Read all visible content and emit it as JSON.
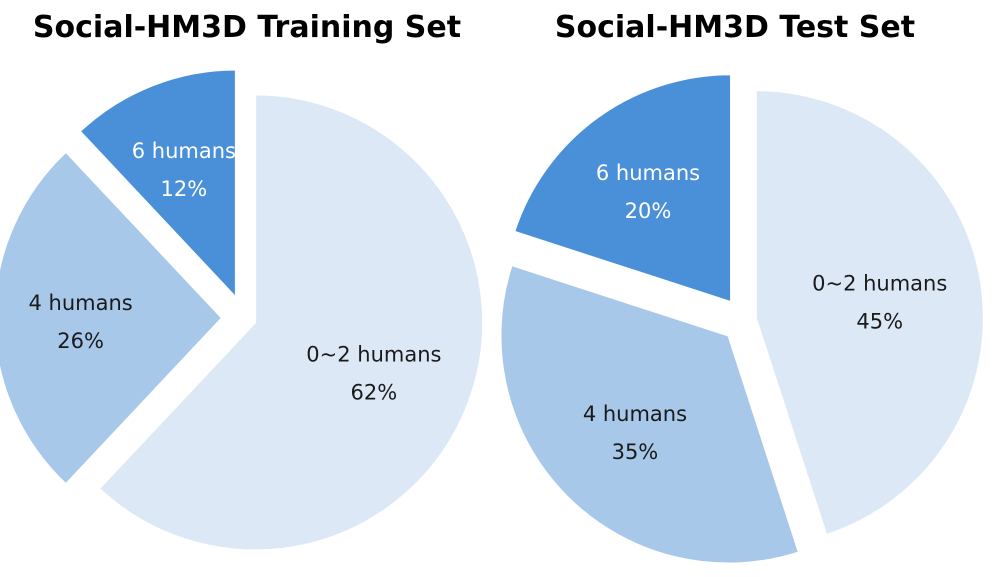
{
  "chart_data": [
    {
      "type": "pie",
      "title": "Social-HM3D Training Set",
      "slices": [
        {
          "label": "0~2 humans",
          "percent_label": "62%",
          "value": 62,
          "color": "#DCE8F6",
          "text_color": "#1a1a1a"
        },
        {
          "label": "4 humans",
          "percent_label": "26%",
          "value": 26,
          "color": "#A8C8EA",
          "text_color": "#1a1a1a"
        },
        {
          "label": "6 humans",
          "percent_label": "12%",
          "value": 12,
          "color": "#4A90D9",
          "text_color": "#ffffff"
        }
      ],
      "legend": "none"
    },
    {
      "type": "pie",
      "title": "Social-HM3D Test Set",
      "slices": [
        {
          "label": "0~2 humans",
          "percent_label": "45%",
          "value": 45,
          "color": "#DCE8F6",
          "text_color": "#1a1a1a"
        },
        {
          "label": "4 humans",
          "percent_label": "35%",
          "value": 35,
          "color": "#A8C8EA",
          "text_color": "#1a1a1a"
        },
        {
          "label": "6 humans",
          "percent_label": "20%",
          "value": 20,
          "color": "#4A90D9",
          "text_color": "#ffffff"
        }
      ],
      "legend": "none"
    }
  ]
}
